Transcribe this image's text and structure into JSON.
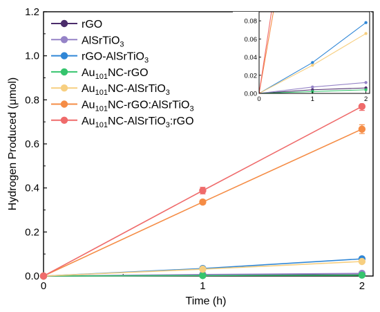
{
  "chart_data": {
    "type": "line",
    "xlabel": "Time (h)",
    "ylabel": "Hydrogen Produced (μmol)",
    "xlim": [
      0,
      2.07
    ],
    "ylim": [
      0,
      1.2
    ],
    "x_ticks": [
      "0",
      "1",
      "2"
    ],
    "y_ticks": [
      "0.0",
      "0.2",
      "0.4",
      "0.6",
      "0.8",
      "1.0",
      "1.2"
    ],
    "legend_position": "top-left",
    "x": [
      0,
      1,
      2
    ],
    "series": [
      {
        "name": "rGO",
        "name_main": "rGO",
        "name_sub": "",
        "name_post": "",
        "color": "#4b2c6b",
        "values": [
          0,
          0.004,
          0.006
        ],
        "errors": [
          0,
          0.001,
          0.001
        ]
      },
      {
        "name": "AlSrTiO3",
        "name_main": "AlSrTiO",
        "name_sub": "3",
        "name_post": "",
        "color": "#9583c7",
        "values": [
          0,
          0.007,
          0.012
        ],
        "errors": [
          0,
          0.001,
          0.002
        ]
      },
      {
        "name": "rGO-AlSrTiO3",
        "name_main": "rGO-AlSrTiO",
        "name_sub": "3",
        "name_post": "",
        "color": "#2f86d6",
        "values": [
          0,
          0.034,
          0.078
        ],
        "errors": [
          0,
          0.002,
          0.004
        ]
      },
      {
        "name": "Au101NC-rGO",
        "name_main": "Au",
        "name_sub": "101",
        "name_post": "NC-rGO",
        "color": "#35c46d",
        "values": [
          0,
          0.002,
          0.004
        ],
        "errors": [
          0,
          0.001,
          0.001
        ]
      },
      {
        "name": "Au101NC-AlSrTiO3",
        "name_main": "Au",
        "name_sub": "101",
        "name_post": "NC-AlSrTiO",
        "name_sub2": "3",
        "color": "#f7cf80",
        "values": [
          0,
          0.031,
          0.066
        ],
        "errors": [
          0,
          0.002,
          0.004
        ]
      },
      {
        "name": "Au101NC-rGO:AlSrTiO3",
        "name_main": "Au",
        "name_sub": "101",
        "name_post": "NC-rGO:AlSrTiO",
        "name_sub2": "3",
        "color": "#f58c45",
        "values": [
          0,
          0.336,
          0.667
        ],
        "errors": [
          0,
          0.01,
          0.02
        ]
      },
      {
        "name": "Au101NC-AlSrTiO3:rGO",
        "name_main": "Au",
        "name_sub": "101",
        "name_post": "NC-AlSrTiO",
        "name_sub2": "3",
        "name_post2": ":rGO",
        "color": "#ef6b6b",
        "values": [
          0,
          0.388,
          0.77
        ],
        "errors": [
          0,
          0.015,
          0.018
        ]
      }
    ],
    "inset": {
      "xlim": [
        0,
        2.07
      ],
      "ylim": [
        0,
        0.09
      ],
      "x_ticks": [
        "0",
        "1",
        "2"
      ],
      "y_ticks": [
        "0.00",
        "0.02",
        "0.04",
        "0.06",
        "0.08"
      ]
    }
  }
}
